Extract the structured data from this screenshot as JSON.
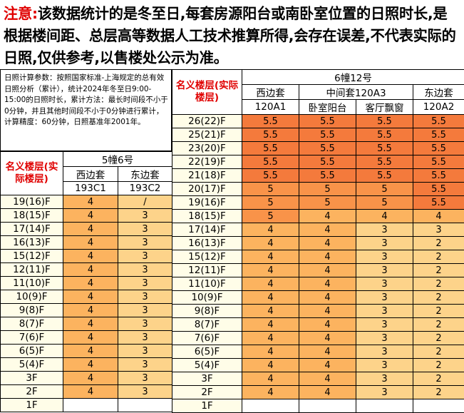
{
  "notice": {
    "prefix": "注意:",
    "text": "该数据统计的是冬至日,每套房源阳台或南卧室位置的日照时长,是根据楼间距、总层高等数据人工技术推算所得,会存在误差,不代表实际的日照,仅供参考,以售楼处公示为准。"
  },
  "params": {
    "text": "日照计算参数：按照国家标准-上海规定的总有效日照分析（累计），统计2024年冬至日9:00-15:00的日照时长，累计方法：最长时间段不小于0分钟，并且其他时间段不小于0分钟进行累计，计算精度：60分钟，日照基准年2001年。"
  },
  "colors": {
    "red_text": "#e00000",
    "h0": "#fffde8",
    "h3": "#fdd38a",
    "h4": "#fcb35f",
    "h5": "#f99349",
    "h55": "#f47a3c"
  },
  "building_left": {
    "floor_header": "名义楼层(实际楼层)",
    "name": "5幢6号",
    "units": [
      {
        "side": "西边套",
        "code": "193C1"
      },
      {
        "side": "东边套",
        "code": "193C2"
      }
    ],
    "rows": [
      {
        "floor": "19(16)F",
        "values": [
          "4",
          "/"
        ]
      },
      {
        "floor": "18(15)F",
        "values": [
          "4",
          "3"
        ]
      },
      {
        "floor": "17(14)F",
        "values": [
          "4",
          "3"
        ]
      },
      {
        "floor": "16(13)F",
        "values": [
          "4",
          "3"
        ]
      },
      {
        "floor": "15(12)F",
        "values": [
          "4",
          "3"
        ]
      },
      {
        "floor": "12(11)F",
        "values": [
          "4",
          "3"
        ]
      },
      {
        "floor": "11(10)F",
        "values": [
          "4",
          "3"
        ]
      },
      {
        "floor": "10(9)F",
        "values": [
          "4",
          "3"
        ]
      },
      {
        "floor": "9(8)F",
        "values": [
          "4",
          "3"
        ]
      },
      {
        "floor": "8(7)F",
        "values": [
          "4",
          "3"
        ]
      },
      {
        "floor": "7(6)F",
        "values": [
          "4",
          "3"
        ]
      },
      {
        "floor": "6(5)F",
        "values": [
          "4",
          "3"
        ]
      },
      {
        "floor": "5(4)F",
        "values": [
          "4",
          "3"
        ]
      },
      {
        "floor": "3F",
        "values": [
          "4",
          "3"
        ]
      },
      {
        "floor": "2F",
        "values": [
          "4",
          "3"
        ]
      },
      {
        "floor": "1F",
        "values": [
          "",
          ""
        ]
      }
    ]
  },
  "building_right": {
    "floor_header": "名义楼层(实际楼层)",
    "name": "6幢12号",
    "groups": [
      {
        "side": "西边套",
        "span": 1
      },
      {
        "side": "中间套120A3",
        "span": 2
      },
      {
        "side": "东边套",
        "span": 1
      }
    ],
    "sub_headers": [
      "120A1",
      "卧室阳台",
      "客厅飘窗",
      "120A2"
    ],
    "rows": [
      {
        "floor": "26(22)F",
        "values": [
          "5.5",
          "5.5",
          "5.5",
          "5.5"
        ]
      },
      {
        "floor": "25(21)F",
        "values": [
          "5.5",
          "5.5",
          "5.5",
          "5.5"
        ]
      },
      {
        "floor": "23(20)F",
        "values": [
          "5.5",
          "5.5",
          "5.5",
          "5.5"
        ]
      },
      {
        "floor": "22(19)F",
        "values": [
          "5.5",
          "5.5",
          "5.5",
          "5.5"
        ]
      },
      {
        "floor": "21(18)F",
        "values": [
          "5.5",
          "5.5",
          "5.5",
          "5.5"
        ]
      },
      {
        "floor": "20(17)F",
        "values": [
          "5",
          "5",
          "5",
          "5.5"
        ]
      },
      {
        "floor": "19(16)F",
        "values": [
          "5",
          "5",
          "5",
          "5.5"
        ]
      },
      {
        "floor": "18(15)F",
        "values": [
          "5",
          "4",
          "4",
          "4"
        ]
      },
      {
        "floor": "17(14)F",
        "values": [
          "4",
          "4",
          "3",
          "3"
        ]
      },
      {
        "floor": "16(13)F",
        "values": [
          "4",
          "4",
          "3",
          "2"
        ]
      },
      {
        "floor": "15(12)F",
        "values": [
          "4",
          "4",
          "3",
          "2"
        ]
      },
      {
        "floor": "12(11)F",
        "values": [
          "4",
          "4",
          "3",
          "2"
        ]
      },
      {
        "floor": "11(10)F",
        "values": [
          "4",
          "4",
          "3",
          "2"
        ]
      },
      {
        "floor": "10(9)F",
        "values": [
          "4",
          "4",
          "3",
          "2"
        ]
      },
      {
        "floor": "9(8)F",
        "values": [
          "4",
          "4",
          "3",
          "2"
        ]
      },
      {
        "floor": "8(7)F",
        "values": [
          "4",
          "4",
          "3",
          "2"
        ]
      },
      {
        "floor": "7(6)F",
        "values": [
          "4",
          "4",
          "3",
          "2"
        ]
      },
      {
        "floor": "6(5)F",
        "values": [
          "4",
          "4",
          "3",
          "2"
        ]
      },
      {
        "floor": "5(4)F",
        "values": [
          "4",
          "4",
          "3",
          "2"
        ]
      },
      {
        "floor": "3F",
        "values": [
          "4",
          "4",
          "3",
          "2"
        ]
      },
      {
        "floor": "2F",
        "values": [
          "4",
          "4",
          "3",
          "2"
        ]
      },
      {
        "floor": "1F",
        "values": [
          "",
          "",
          "",
          ""
        ]
      }
    ]
  }
}
